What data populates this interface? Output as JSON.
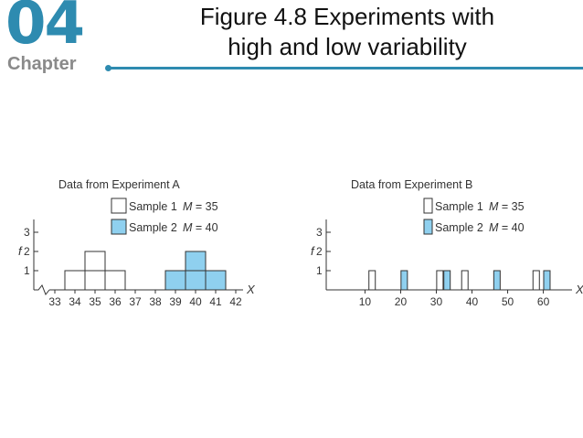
{
  "header": {
    "chapter_number": "04",
    "chapter_word": "Chapter",
    "title_line1": "Figure 4.8   Experiments with",
    "title_line2": "high and low variability"
  },
  "colors": {
    "accent": "#2e8bb0",
    "sample2_fill": "#8fd0ef",
    "sample1_fill": "#ffffff",
    "stroke": "#333333"
  },
  "chart_data": [
    {
      "type": "histogram",
      "title": "Data from Experiment A",
      "legend": [
        {
          "label": "Sample 1",
          "stat": "M = 35",
          "fill": "white"
        },
        {
          "label": "Sample 2",
          "stat": "M = 40",
          "fill": "blue"
        }
      ],
      "ylabel": "f",
      "xlabel": "X",
      "yticks": [
        1,
        2,
        3
      ],
      "xticks": [
        33,
        34,
        35,
        36,
        37,
        38,
        39,
        40,
        41,
        42
      ],
      "axis_break": true,
      "series": [
        {
          "name": "Sample 1",
          "x": [
            34,
            35,
            36
          ],
          "f": [
            1,
            2,
            1
          ]
        },
        {
          "name": "Sample 2",
          "x": [
            39,
            40,
            41
          ],
          "f": [
            1,
            2,
            1
          ]
        }
      ]
    },
    {
      "type": "histogram",
      "title": "Data from Experiment B",
      "legend": [
        {
          "label": "Sample 1",
          "stat": "M = 35",
          "fill": "white"
        },
        {
          "label": "Sample 2",
          "stat": "M = 40",
          "fill": "blue"
        }
      ],
      "ylabel": "f",
      "xlabel": "X",
      "yticks": [
        1,
        2,
        3
      ],
      "xticks": [
        10,
        20,
        30,
        40,
        50,
        60
      ],
      "axis_break": false,
      "series": [
        {
          "name": "Sample 1",
          "x": [
            12,
            31,
            38,
            58
          ],
          "f": [
            1,
            1,
            1,
            1
          ]
        },
        {
          "name": "Sample 2",
          "x": [
            21,
            33,
            47,
            61
          ],
          "f": [
            1,
            1,
            1,
            1
          ]
        }
      ]
    }
  ]
}
